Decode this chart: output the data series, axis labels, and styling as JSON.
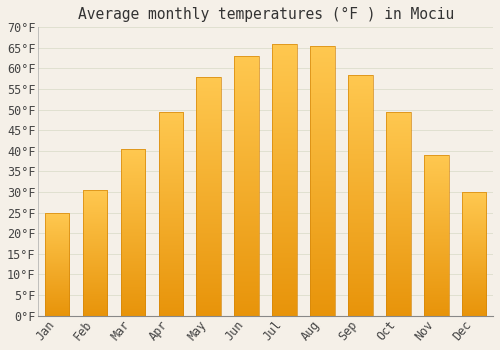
{
  "title": "Average monthly temperatures (°F ) in Mociu",
  "months": [
    "Jan",
    "Feb",
    "Mar",
    "Apr",
    "May",
    "Jun",
    "Jul",
    "Aug",
    "Sep",
    "Oct",
    "Nov",
    "Dec"
  ],
  "values": [
    25,
    30.5,
    40.5,
    49.5,
    58,
    63,
    66,
    65.5,
    58.5,
    49.5,
    39,
    30
  ],
  "bar_color_top": "#FFC04D",
  "bar_color_bottom": "#E8940A",
  "bar_edge_color": "#D4860A",
  "background_color": "#F5F0E8",
  "plot_bg_color": "#F5F0E8",
  "grid_color": "#DDDDCC",
  "text_color": "#444444",
  "title_color": "#333333",
  "ylim": [
    0,
    70
  ],
  "yticks": [
    0,
    5,
    10,
    15,
    20,
    25,
    30,
    35,
    40,
    45,
    50,
    55,
    60,
    65,
    70
  ],
  "title_fontsize": 10.5,
  "tick_fontsize": 8.5,
  "bar_width": 0.65
}
